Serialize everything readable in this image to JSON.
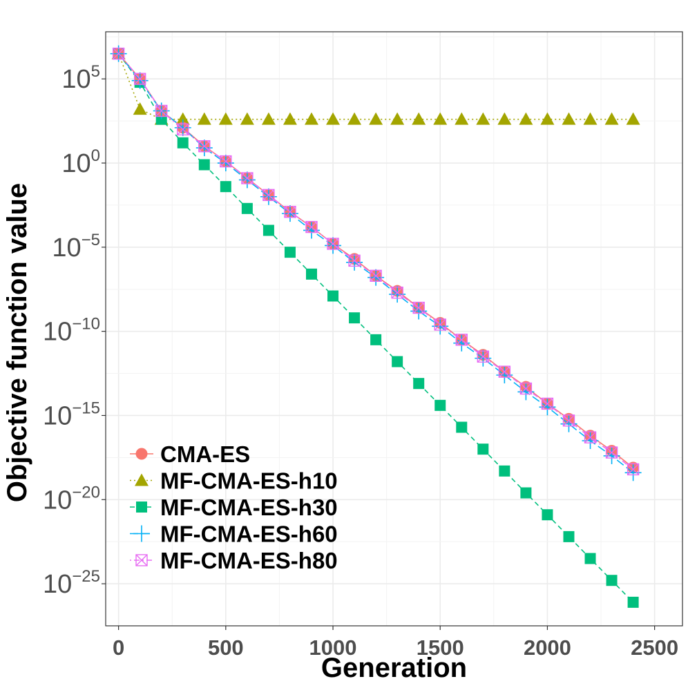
{
  "chart_data": {
    "type": "line",
    "title": "",
    "xlabel": "Generation",
    "ylabel": "Objective function value",
    "xlim": [
      -60,
      2630
    ],
    "ylim_log10": [
      -27.5,
      7.8
    ],
    "y_scale": "log",
    "grid": true,
    "x_ticks": [
      0,
      500,
      1000,
      1500,
      2000,
      2500
    ],
    "x_tick_labels": [
      "0",
      "500",
      "1000",
      "1500",
      "2000",
      "2500"
    ],
    "y_ticks": [
      {
        "exp": 5,
        "base": "10",
        "sup": "5"
      },
      {
        "exp": 0,
        "base": "10",
        "sup": "0"
      },
      {
        "exp": -5,
        "base": "10",
        "sup": "−5"
      },
      {
        "exp": -10,
        "base": "10",
        "sup": "−10"
      },
      {
        "exp": -15,
        "base": "10",
        "sup": "−15"
      },
      {
        "exp": -20,
        "base": "10",
        "sup": "−20"
      },
      {
        "exp": -25,
        "base": "10",
        "sup": "−25"
      }
    ],
    "legend_position": "bottom-left",
    "x": [
      0,
      100,
      200,
      300,
      400,
      500,
      600,
      700,
      800,
      900,
      1000,
      1100,
      1200,
      1300,
      1400,
      1500,
      1600,
      1700,
      1800,
      1900,
      2000,
      2100,
      2200,
      2300,
      2400
    ],
    "series": [
      {
        "name": "CMA-ES",
        "color": "#F8766D",
        "marker": "circle",
        "dash": "solid",
        "log10_values": [
          6.5,
          5.0,
          3.1,
          2.1,
          1.0,
          0.1,
          -0.9,
          -1.9,
          -2.9,
          -3.8,
          -4.8,
          -5.7,
          -6.7,
          -7.6,
          -8.6,
          -9.5,
          -10.5,
          -11.4,
          -12.4,
          -13.3,
          -14.3,
          -15.2,
          -16.2,
          -17.1,
          -18.1
        ]
      },
      {
        "name": "MF-CMA-ES-h10",
        "color": "#A3A500",
        "marker": "triangle",
        "dash": "dotted",
        "log10_values": [
          6.5,
          3.2,
          2.6,
          2.6,
          2.6,
          2.6,
          2.6,
          2.6,
          2.6,
          2.6,
          2.6,
          2.6,
          2.6,
          2.6,
          2.6,
          2.6,
          2.6,
          2.6,
          2.6,
          2.6,
          2.6,
          2.6,
          2.6,
          2.6,
          2.6
        ]
      },
      {
        "name": "MF-CMA-ES-h30",
        "color": "#00BF7D",
        "marker": "square",
        "dash": "dashed",
        "log10_values": [
          6.5,
          4.8,
          2.6,
          1.2,
          -0.1,
          -1.4,
          -2.7,
          -4.0,
          -5.3,
          -6.6,
          -7.9,
          -9.2,
          -10.5,
          -11.8,
          -13.1,
          -14.4,
          -15.7,
          -17.0,
          -18.3,
          -19.6,
          -20.9,
          -22.2,
          -23.5,
          -24.8,
          -26.1
        ]
      },
      {
        "name": "MF-CMA-ES-h60",
        "color": "#00B0F6",
        "marker": "plus",
        "dash": "longdash",
        "log10_values": [
          6.5,
          4.9,
          3.1,
          2.1,
          0.9,
          0.0,
          -1.0,
          -2.0,
          -3.0,
          -4.0,
          -4.9,
          -5.9,
          -6.8,
          -7.8,
          -8.8,
          -9.7,
          -10.7,
          -11.6,
          -12.6,
          -13.6,
          -14.5,
          -15.5,
          -16.5,
          -17.4,
          -18.4
        ]
      },
      {
        "name": "MF-CMA-ES-h80",
        "color": "#E76BF3",
        "marker": "boxcross",
        "dash": "dotdash",
        "log10_values": [
          6.5,
          5.0,
          3.1,
          2.0,
          1.0,
          0.1,
          -0.9,
          -1.9,
          -2.9,
          -3.8,
          -4.8,
          -5.8,
          -6.7,
          -7.7,
          -8.6,
          -9.6,
          -10.5,
          -11.5,
          -12.4,
          -13.4,
          -14.3,
          -15.3,
          -16.3,
          -17.2,
          -18.2
        ]
      }
    ]
  }
}
